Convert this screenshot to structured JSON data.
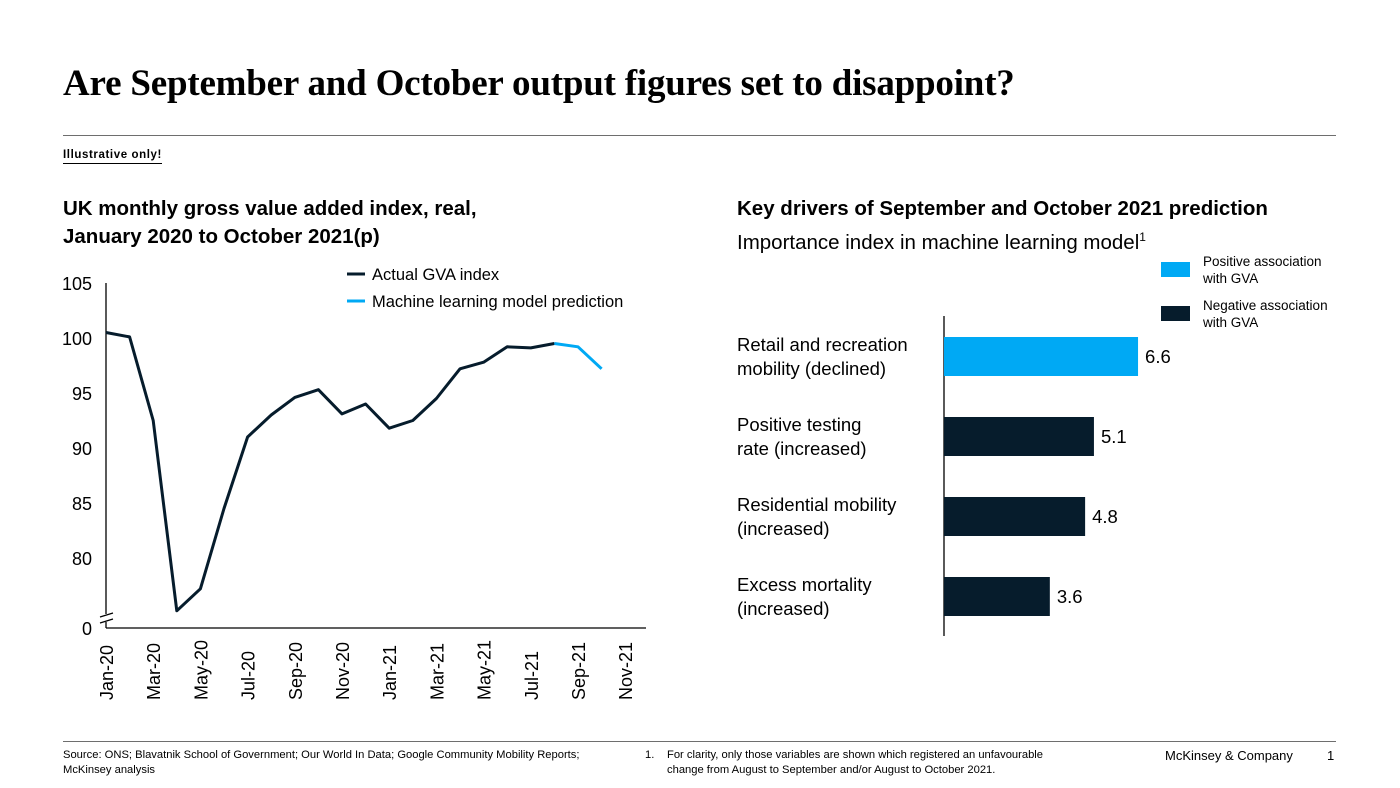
{
  "title": "Are September and October output figures set to disappoint?",
  "illustrative_label": "Illustrative only!",
  "footer": {
    "source": "Source: ONS; Blavatnik School of Government; Our World In Data; Google Community Mobility Reports; McKinsey analysis",
    "note_number": "1.",
    "note_text": "For clarity, only those variables are shown which registered an unfavourable change from August to September and/or August to October 2021.",
    "company": "McKinsey & Company",
    "page_number": "1"
  },
  "chart_data": [
    {
      "type": "line",
      "title": "UK monthly gross value added index, real,",
      "subtitle": "January 2020 to October 2021(p)",
      "x": [
        "Jan-20",
        "Feb-20",
        "Mar-20",
        "Apr-20",
        "May-20",
        "Jun-20",
        "Jul-20",
        "Aug-20",
        "Sep-20",
        "Oct-20",
        "Nov-20",
        "Dec-20",
        "Jan-21",
        "Feb-21",
        "Mar-21",
        "Apr-21",
        "May-21",
        "Jun-21",
        "Jul-21",
        "Aug-21",
        "Sep-21",
        "Oct-21",
        "Nov-21"
      ],
      "x_tick_labels": [
        "Jan-20",
        "Mar-20",
        "May-20",
        "Jul-20",
        "Sep-20",
        "Nov-20",
        "Jan-21",
        "Mar-21",
        "May-21",
        "Jul-21",
        "Sep-21",
        "Nov-21"
      ],
      "y_tick_labels": [
        "0",
        "80",
        "85",
        "90",
        "95",
        "100",
        "105"
      ],
      "y_axis_break": true,
      "series": [
        {
          "name": "Actual GVA index",
          "color": "#061c2c",
          "x": [
            "Jan-20",
            "Feb-20",
            "Mar-20",
            "Apr-20",
            "May-20",
            "Jun-20",
            "Jul-20",
            "Aug-20",
            "Sep-20",
            "Oct-20",
            "Nov-20",
            "Dec-20",
            "Jan-21",
            "Feb-21",
            "Mar-21",
            "Apr-21",
            "May-21",
            "Jun-21",
            "Jul-21",
            "Aug-21"
          ],
          "values": [
            100.5,
            100.1,
            92.5,
            75.2,
            77.2,
            84.5,
            91.0,
            93.0,
            94.6,
            95.3,
            93.1,
            94.0,
            91.8,
            92.5,
            94.5,
            97.2,
            97.8,
            99.2,
            99.1,
            99.5
          ]
        },
        {
          "name": "Machine learning model prediction",
          "color": "#00a9f4",
          "x": [
            "Aug-21",
            "Sep-21",
            "Oct-21"
          ],
          "values": [
            99.5,
            99.2,
            97.2
          ]
        }
      ]
    },
    {
      "type": "bar",
      "orientation": "horizontal",
      "title": "Key drivers of September and October 2021 prediction",
      "subtitle": "Importance index in machine learning model",
      "subtitle_superscript": "1",
      "categories": [
        [
          "Retail and recreation",
          "mobility (declined)"
        ],
        [
          "Positive testing",
          "rate (increased)"
        ],
        [
          "Residential mobility",
          "(increased)"
        ],
        [
          "Excess mortality",
          "(increased)"
        ]
      ],
      "values": [
        6.6,
        5.1,
        4.8,
        3.6
      ],
      "value_labels": [
        "6.6",
        "5.1",
        "4.8",
        "3.6"
      ],
      "bar_colors": [
        "#00a9f4",
        "#061c2c",
        "#061c2c",
        "#061c2c"
      ],
      "legend": [
        {
          "color": "#00a9f4",
          "lines": [
            "Positive association",
            "with GVA"
          ]
        },
        {
          "color": "#061c2c",
          "lines": [
            "Negative association",
            "with GVA"
          ]
        }
      ]
    }
  ]
}
